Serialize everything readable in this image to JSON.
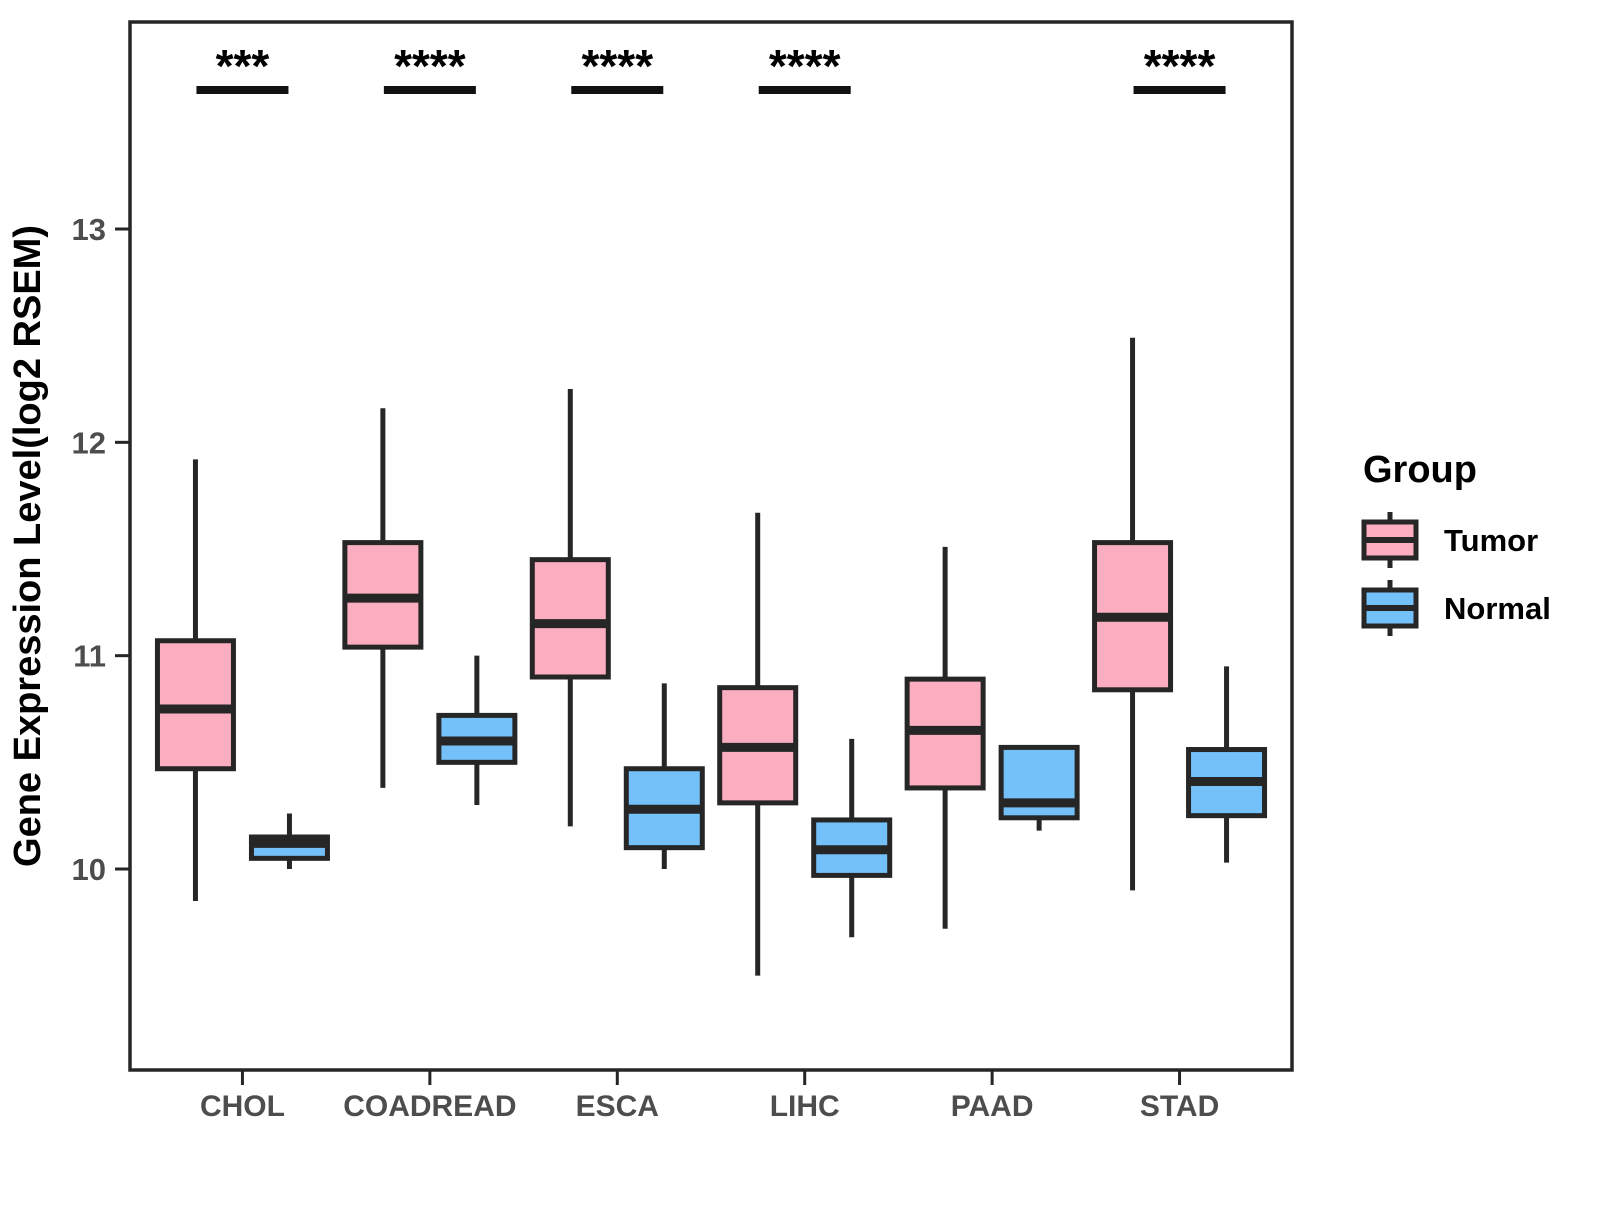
{
  "chart_data": {
    "type": "grouped_boxplot",
    "title": "",
    "xlabel": "",
    "ylabel": "Gene Expression Level(log2 RSEM)",
    "categories": [
      "CHOL",
      "COADREAD",
      "ESCA",
      "LIHC",
      "PAAD",
      "STAD"
    ],
    "y_ticks": [
      10,
      11,
      12,
      13
    ],
    "ylim": [
      9.06,
      13.97
    ],
    "grid": "off",
    "legend": {
      "title": "Group",
      "position": "right",
      "entries": [
        {
          "label": "Tumor",
          "color": "#FBAEC0"
        },
        {
          "label": "Normal",
          "color": "#74C0F8"
        }
      ]
    },
    "series": [
      {
        "name": "Tumor",
        "color": "#FBAEC0",
        "boxes": [
          {
            "category": "CHOL",
            "min": 9.85,
            "q1": 10.47,
            "median": 10.75,
            "q3": 11.07,
            "max": 11.92
          },
          {
            "category": "COADREAD",
            "min": 10.38,
            "q1": 11.04,
            "median": 11.27,
            "q3": 11.53,
            "max": 12.16
          },
          {
            "category": "ESCA",
            "min": 10.2,
            "q1": 10.9,
            "median": 11.15,
            "q3": 11.45,
            "max": 12.25
          },
          {
            "category": "LIHC",
            "min": 9.5,
            "q1": 10.31,
            "median": 10.57,
            "q3": 10.85,
            "max": 11.67
          },
          {
            "category": "PAAD",
            "min": 9.72,
            "q1": 10.38,
            "median": 10.65,
            "q3": 10.89,
            "max": 11.51
          },
          {
            "category": "STAD",
            "min": 9.9,
            "q1": 10.84,
            "median": 11.18,
            "q3": 11.53,
            "max": 12.49
          }
        ]
      },
      {
        "name": "Normal",
        "color": "#74C0F8",
        "boxes": [
          {
            "category": "CHOL",
            "min": 10.0,
            "q1": 10.05,
            "median": 10.12,
            "q3": 10.15,
            "max": 10.26
          },
          {
            "category": "COADREAD",
            "min": 10.3,
            "q1": 10.5,
            "median": 10.6,
            "q3": 10.72,
            "max": 11.0
          },
          {
            "category": "ESCA",
            "min": 10.0,
            "q1": 10.1,
            "median": 10.28,
            "q3": 10.47,
            "max": 10.87
          },
          {
            "category": "LIHC",
            "min": 9.68,
            "q1": 9.97,
            "median": 10.09,
            "q3": 10.23,
            "max": 10.61
          },
          {
            "category": "PAAD",
            "min": 10.18,
            "q1": 10.24,
            "median": 10.31,
            "q3": 10.57,
            "max": 10.57
          },
          {
            "category": "STAD",
            "min": 10.03,
            "q1": 10.25,
            "median": 10.41,
            "q3": 10.56,
            "max": 10.95
          }
        ]
      }
    ],
    "significance": [
      {
        "category": "CHOL",
        "label": "***"
      },
      {
        "category": "COADREAD",
        "label": "****"
      },
      {
        "category": "ESCA",
        "label": "****"
      },
      {
        "category": "LIHC",
        "label": "****"
      },
      {
        "category": "PAAD",
        "label": ""
      },
      {
        "category": "STAD",
        "label": "****"
      }
    ],
    "colors": {
      "tumor_fill": "#FBAEC0",
      "normal_fill": "#74C0F8",
      "line": "#262626",
      "axis_text": "#4d4d4d",
      "title_text": "#000000",
      "significance_bar": "#111111"
    }
  }
}
